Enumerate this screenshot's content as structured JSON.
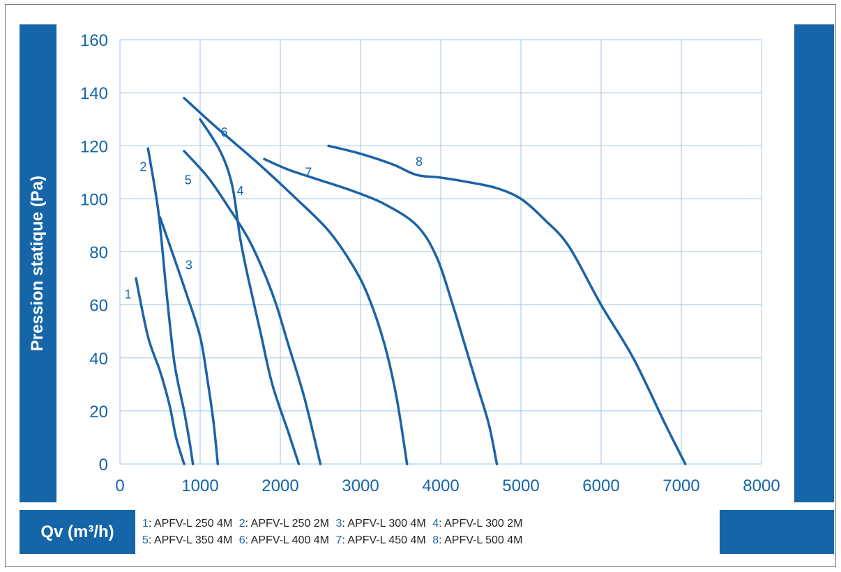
{
  "chart_data": {
    "type": "line",
    "xlabel": "Qv (m³/h)",
    "ylabel": "Pression statique (Pa)",
    "xlim": [
      0,
      8000
    ],
    "ylim": [
      0,
      160
    ],
    "x_ticks": [
      "0",
      "1000",
      "2000",
      "3000",
      "4000",
      "5000",
      "6000",
      "7000",
      "8000"
    ],
    "y_ticks": [
      "0",
      "20",
      "40",
      "60",
      "80",
      "100",
      "120",
      "140",
      "160"
    ],
    "grid": true,
    "series": [
      {
        "name": "1",
        "label_x": 100,
        "label_y": 64,
        "points": [
          [
            200,
            70
          ],
          [
            350,
            48
          ],
          [
            500,
            35
          ],
          [
            620,
            22
          ],
          [
            700,
            10
          ],
          [
            800,
            0
          ]
        ]
      },
      {
        "name": "2",
        "label_x": 290,
        "label_y": 112,
        "points": [
          [
            350,
            119
          ],
          [
            480,
            95
          ],
          [
            580,
            65
          ],
          [
            680,
            38
          ],
          [
            800,
            20
          ],
          [
            870,
            8
          ],
          [
            910,
            0
          ]
        ]
      },
      {
        "name": "3",
        "label_x": 860,
        "label_y": 75,
        "points": [
          [
            500,
            93
          ],
          [
            650,
            80
          ],
          [
            820,
            65
          ],
          [
            1000,
            48
          ],
          [
            1100,
            30
          ],
          [
            1170,
            15
          ],
          [
            1220,
            0
          ]
        ]
      },
      {
        "name": "4",
        "label_x": 1500,
        "label_y": 103,
        "points": [
          [
            1000,
            130
          ],
          [
            1250,
            118
          ],
          [
            1400,
            105
          ],
          [
            1500,
            85
          ],
          [
            1600,
            70
          ],
          [
            1750,
            50
          ],
          [
            1900,
            30
          ],
          [
            2100,
            12
          ],
          [
            2230,
            0
          ]
        ]
      },
      {
        "name": "5",
        "label_x": 850,
        "label_y": 107,
        "points": [
          [
            800,
            118
          ],
          [
            1100,
            108
          ],
          [
            1350,
            97
          ],
          [
            1600,
            85
          ],
          [
            1800,
            72
          ],
          [
            1950,
            60
          ],
          [
            2100,
            45
          ],
          [
            2300,
            25
          ],
          [
            2500,
            0
          ]
        ]
      },
      {
        "name": "6",
        "label_x": 1300,
        "label_y": 125,
        "points": [
          [
            800,
            138
          ],
          [
            1200,
            127
          ],
          [
            1700,
            114
          ],
          [
            2200,
            100
          ],
          [
            2600,
            88
          ],
          [
            2900,
            75
          ],
          [
            3100,
            63
          ],
          [
            3300,
            45
          ],
          [
            3450,
            25
          ],
          [
            3580,
            0
          ]
        ]
      },
      {
        "name": "7",
        "label_x": 2350,
        "label_y": 110,
        "points": [
          [
            1800,
            115
          ],
          [
            2100,
            111
          ],
          [
            2500,
            107
          ],
          [
            2900,
            103
          ],
          [
            3300,
            98
          ],
          [
            3700,
            90
          ],
          [
            3950,
            78
          ],
          [
            4150,
            60
          ],
          [
            4300,
            45
          ],
          [
            4450,
            30
          ],
          [
            4600,
            15
          ],
          [
            4700,
            0
          ]
        ]
      },
      {
        "name": "8",
        "label_x": 3730,
        "label_y": 114,
        "points": [
          [
            2600,
            120
          ],
          [
            3000,
            117
          ],
          [
            3400,
            113
          ],
          [
            3700,
            109
          ],
          [
            4000,
            108
          ],
          [
            4400,
            106
          ],
          [
            4700,
            104
          ],
          [
            5000,
            100
          ],
          [
            5300,
            92
          ],
          [
            5600,
            82
          ],
          [
            6000,
            60
          ],
          [
            6400,
            40
          ],
          [
            6800,
            15
          ],
          [
            7050,
            0
          ]
        ]
      }
    ],
    "legend": [
      {
        "num": "1",
        "text": "APFV-L 250 4M"
      },
      {
        "num": "2",
        "text": "APFV-L 250 2M"
      },
      {
        "num": "3",
        "text": "APFV-L 300 4M"
      },
      {
        "num": "4",
        "text": "APFV-L 300 2M"
      },
      {
        "num": "5",
        "text": "APFV-L 350 4M"
      },
      {
        "num": "6",
        "text": "APFV-L 400 4M"
      },
      {
        "num": "7",
        "text": "APFV-L 450 4M"
      },
      {
        "num": "8",
        "text": "APFV-L 500 4M"
      }
    ],
    "colors": {
      "line": "#1b63a8",
      "grid": "#9cc5e8",
      "axis_text": "#1565a8",
      "accent": "#1565a8"
    }
  }
}
